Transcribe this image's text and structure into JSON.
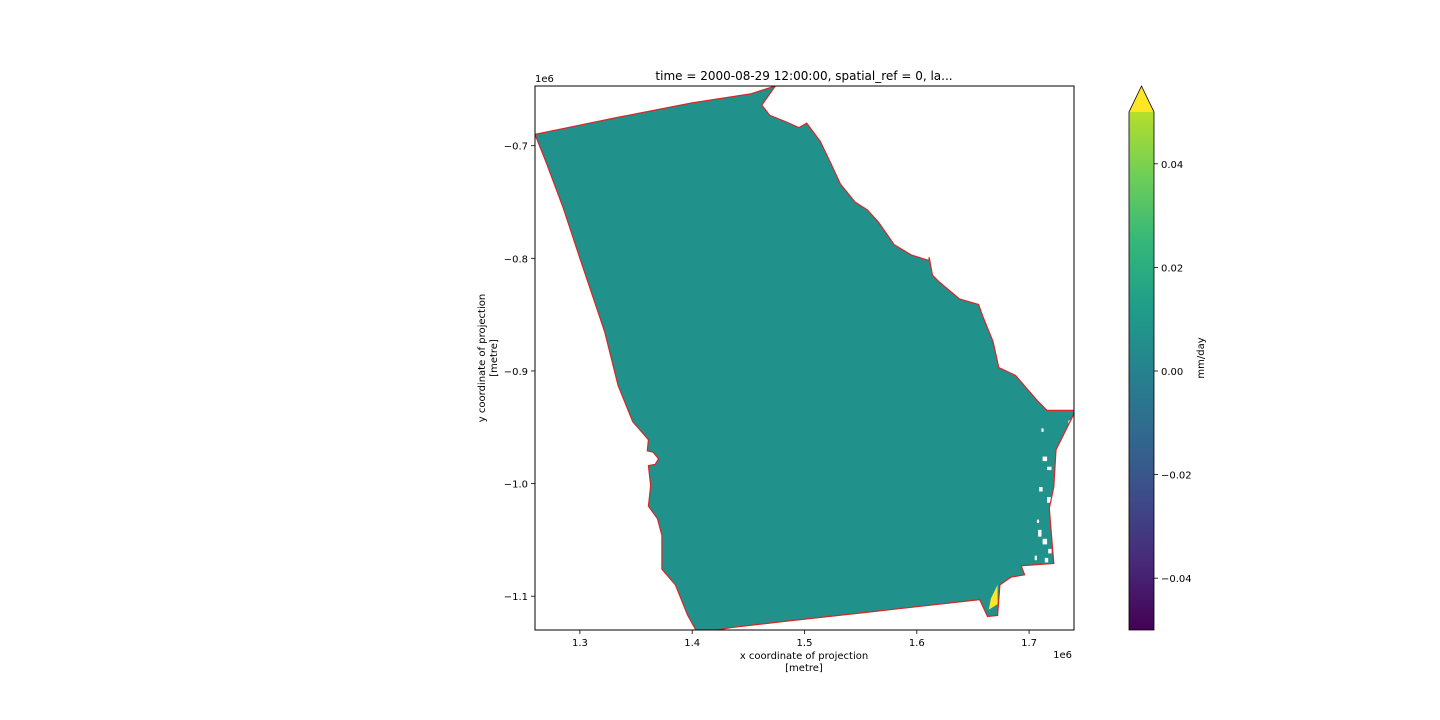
{
  "chart_data": {
    "type": "heatmap",
    "title": "time = 2000-08-29 12:00:00, spatial_ref = 0, la...",
    "xlabel_line1": "x coordinate of projection",
    "xlabel_line2": "[metre]",
    "ylabel_line1": "y coordinate of projection",
    "ylabel_line2": "[metre]",
    "x_offset_label": "1e6",
    "y_offset_label": "1e6",
    "xlim": [
      1.26,
      1.74
    ],
    "ylim": [
      -1.13,
      -0.647
    ],
    "x_ticks": [
      1.3,
      1.4,
      1.5,
      1.6,
      1.7
    ],
    "x_tick_labels": [
      "1.3",
      "1.4",
      "1.5",
      "1.6",
      "1.7"
    ],
    "y_ticks": [
      -0.7,
      -0.8,
      -0.9,
      -1.0,
      -1.1
    ],
    "y_tick_labels": [
      "−0.7",
      "−0.8",
      "−0.9",
      "−1.0",
      "−1.1"
    ],
    "colorbar": {
      "label": "mm/day",
      "range": [
        -0.05,
        0.05
      ],
      "extend": "max",
      "ticks": [
        0.04,
        0.02,
        0.0,
        -0.02,
        -0.04
      ],
      "tick_labels": [
        "0.04",
        "0.02",
        "0.00",
        "−0.02",
        "−0.04"
      ],
      "colormap": "viridis"
    },
    "field_value": 0.0,
    "field_color": "#21918c",
    "high_region_value": 0.05,
    "high_region_color": "#fde725",
    "outline_color": "#d62728",
    "boundary": [
      [
        1.26,
        -0.69
      ],
      [
        1.333,
        -0.675
      ],
      [
        1.4,
        -0.662
      ],
      [
        1.452,
        -0.654
      ],
      [
        1.474,
        -0.647
      ],
      [
        1.462,
        -0.664
      ],
      [
        1.469,
        -0.673
      ],
      [
        1.484,
        -0.679
      ],
      [
        1.495,
        -0.684
      ],
      [
        1.502,
        -0.68
      ],
      [
        1.514,
        -0.696
      ],
      [
        1.524,
        -0.717
      ],
      [
        1.532,
        -0.734
      ],
      [
        1.545,
        -0.75
      ],
      [
        1.556,
        -0.757
      ],
      [
        1.566,
        -0.768
      ],
      [
        1.58,
        -0.788
      ],
      [
        1.595,
        -0.797
      ],
      [
        1.611,
        -0.802
      ],
      [
        1.611,
        -0.799
      ],
      [
        1.614,
        -0.815
      ],
      [
        1.62,
        -0.821
      ],
      [
        1.638,
        -0.836
      ],
      [
        1.655,
        -0.841
      ],
      [
        1.659,
        -0.852
      ],
      [
        1.668,
        -0.874
      ],
      [
        1.673,
        -0.897
      ],
      [
        1.688,
        -0.904
      ],
      [
        1.707,
        -0.926
      ],
      [
        1.716,
        -0.935
      ],
      [
        1.741,
        -0.935
      ],
      [
        1.74,
        -0.938
      ],
      [
        1.724,
        -0.97
      ],
      [
        1.722,
        -1.003
      ],
      [
        1.718,
        -1.022
      ],
      [
        1.722,
        -1.071
      ],
      [
        1.693,
        -1.073
      ],
      [
        1.696,
        -1.081
      ],
      [
        1.684,
        -1.083
      ],
      [
        1.674,
        -1.09
      ],
      [
        1.672,
        -1.117
      ],
      [
        1.663,
        -1.118
      ],
      [
        1.656,
        -1.103
      ],
      [
        1.558,
        -1.114
      ],
      [
        1.485,
        -1.122
      ],
      [
        1.434,
        -1.128
      ],
      [
        1.405,
        -1.133
      ],
      [
        1.396,
        -1.117
      ],
      [
        1.385,
        -1.09
      ],
      [
        1.373,
        -1.076
      ],
      [
        1.373,
        -1.046
      ],
      [
        1.369,
        -1.031
      ],
      [
        1.361,
        -1.02
      ],
      [
        1.363,
        -1.002
      ],
      [
        1.361,
        -0.984
      ],
      [
        1.367,
        -0.983
      ],
      [
        1.37,
        -0.978
      ],
      [
        1.365,
        -0.972
      ],
      [
        1.36,
        -0.971
      ],
      [
        1.361,
        -0.961
      ],
      [
        1.347,
        -0.945
      ],
      [
        1.334,
        -0.913
      ],
      [
        1.322,
        -0.865
      ],
      [
        1.3,
        -0.8
      ],
      [
        1.285,
        -0.755
      ],
      [
        1.27,
        -0.715
      ],
      [
        1.26,
        -0.69
      ]
    ],
    "high_region": [
      [
        1.672,
        -1.09
      ],
      [
        1.672,
        -1.107
      ],
      [
        1.664,
        -1.112
      ],
      [
        1.666,
        -1.102
      ]
    ],
    "gaps": [
      [
        1.712,
        -0.976,
        0.004,
        0.004
      ],
      [
        1.716,
        -0.985,
        0.004,
        0.003
      ],
      [
        1.709,
        -1.003,
        0.003,
        0.004
      ],
      [
        1.716,
        -1.012,
        0.004,
        0.005
      ],
      [
        1.708,
        -1.041,
        0.003,
        0.006
      ],
      [
        1.712,
        -1.049,
        0.004,
        0.005
      ],
      [
        1.717,
        -1.058,
        0.003,
        0.004
      ],
      [
        1.705,
        -1.064,
        0.002,
        0.004
      ],
      [
        1.714,
        -1.066,
        0.003,
        0.004
      ],
      [
        1.707,
        -1.032,
        0.002,
        0.003
      ],
      [
        1.711,
        -0.951,
        0.002,
        0.003
      ],
      [
        1.735,
        -0.944,
        0.002,
        0.003
      ]
    ]
  }
}
